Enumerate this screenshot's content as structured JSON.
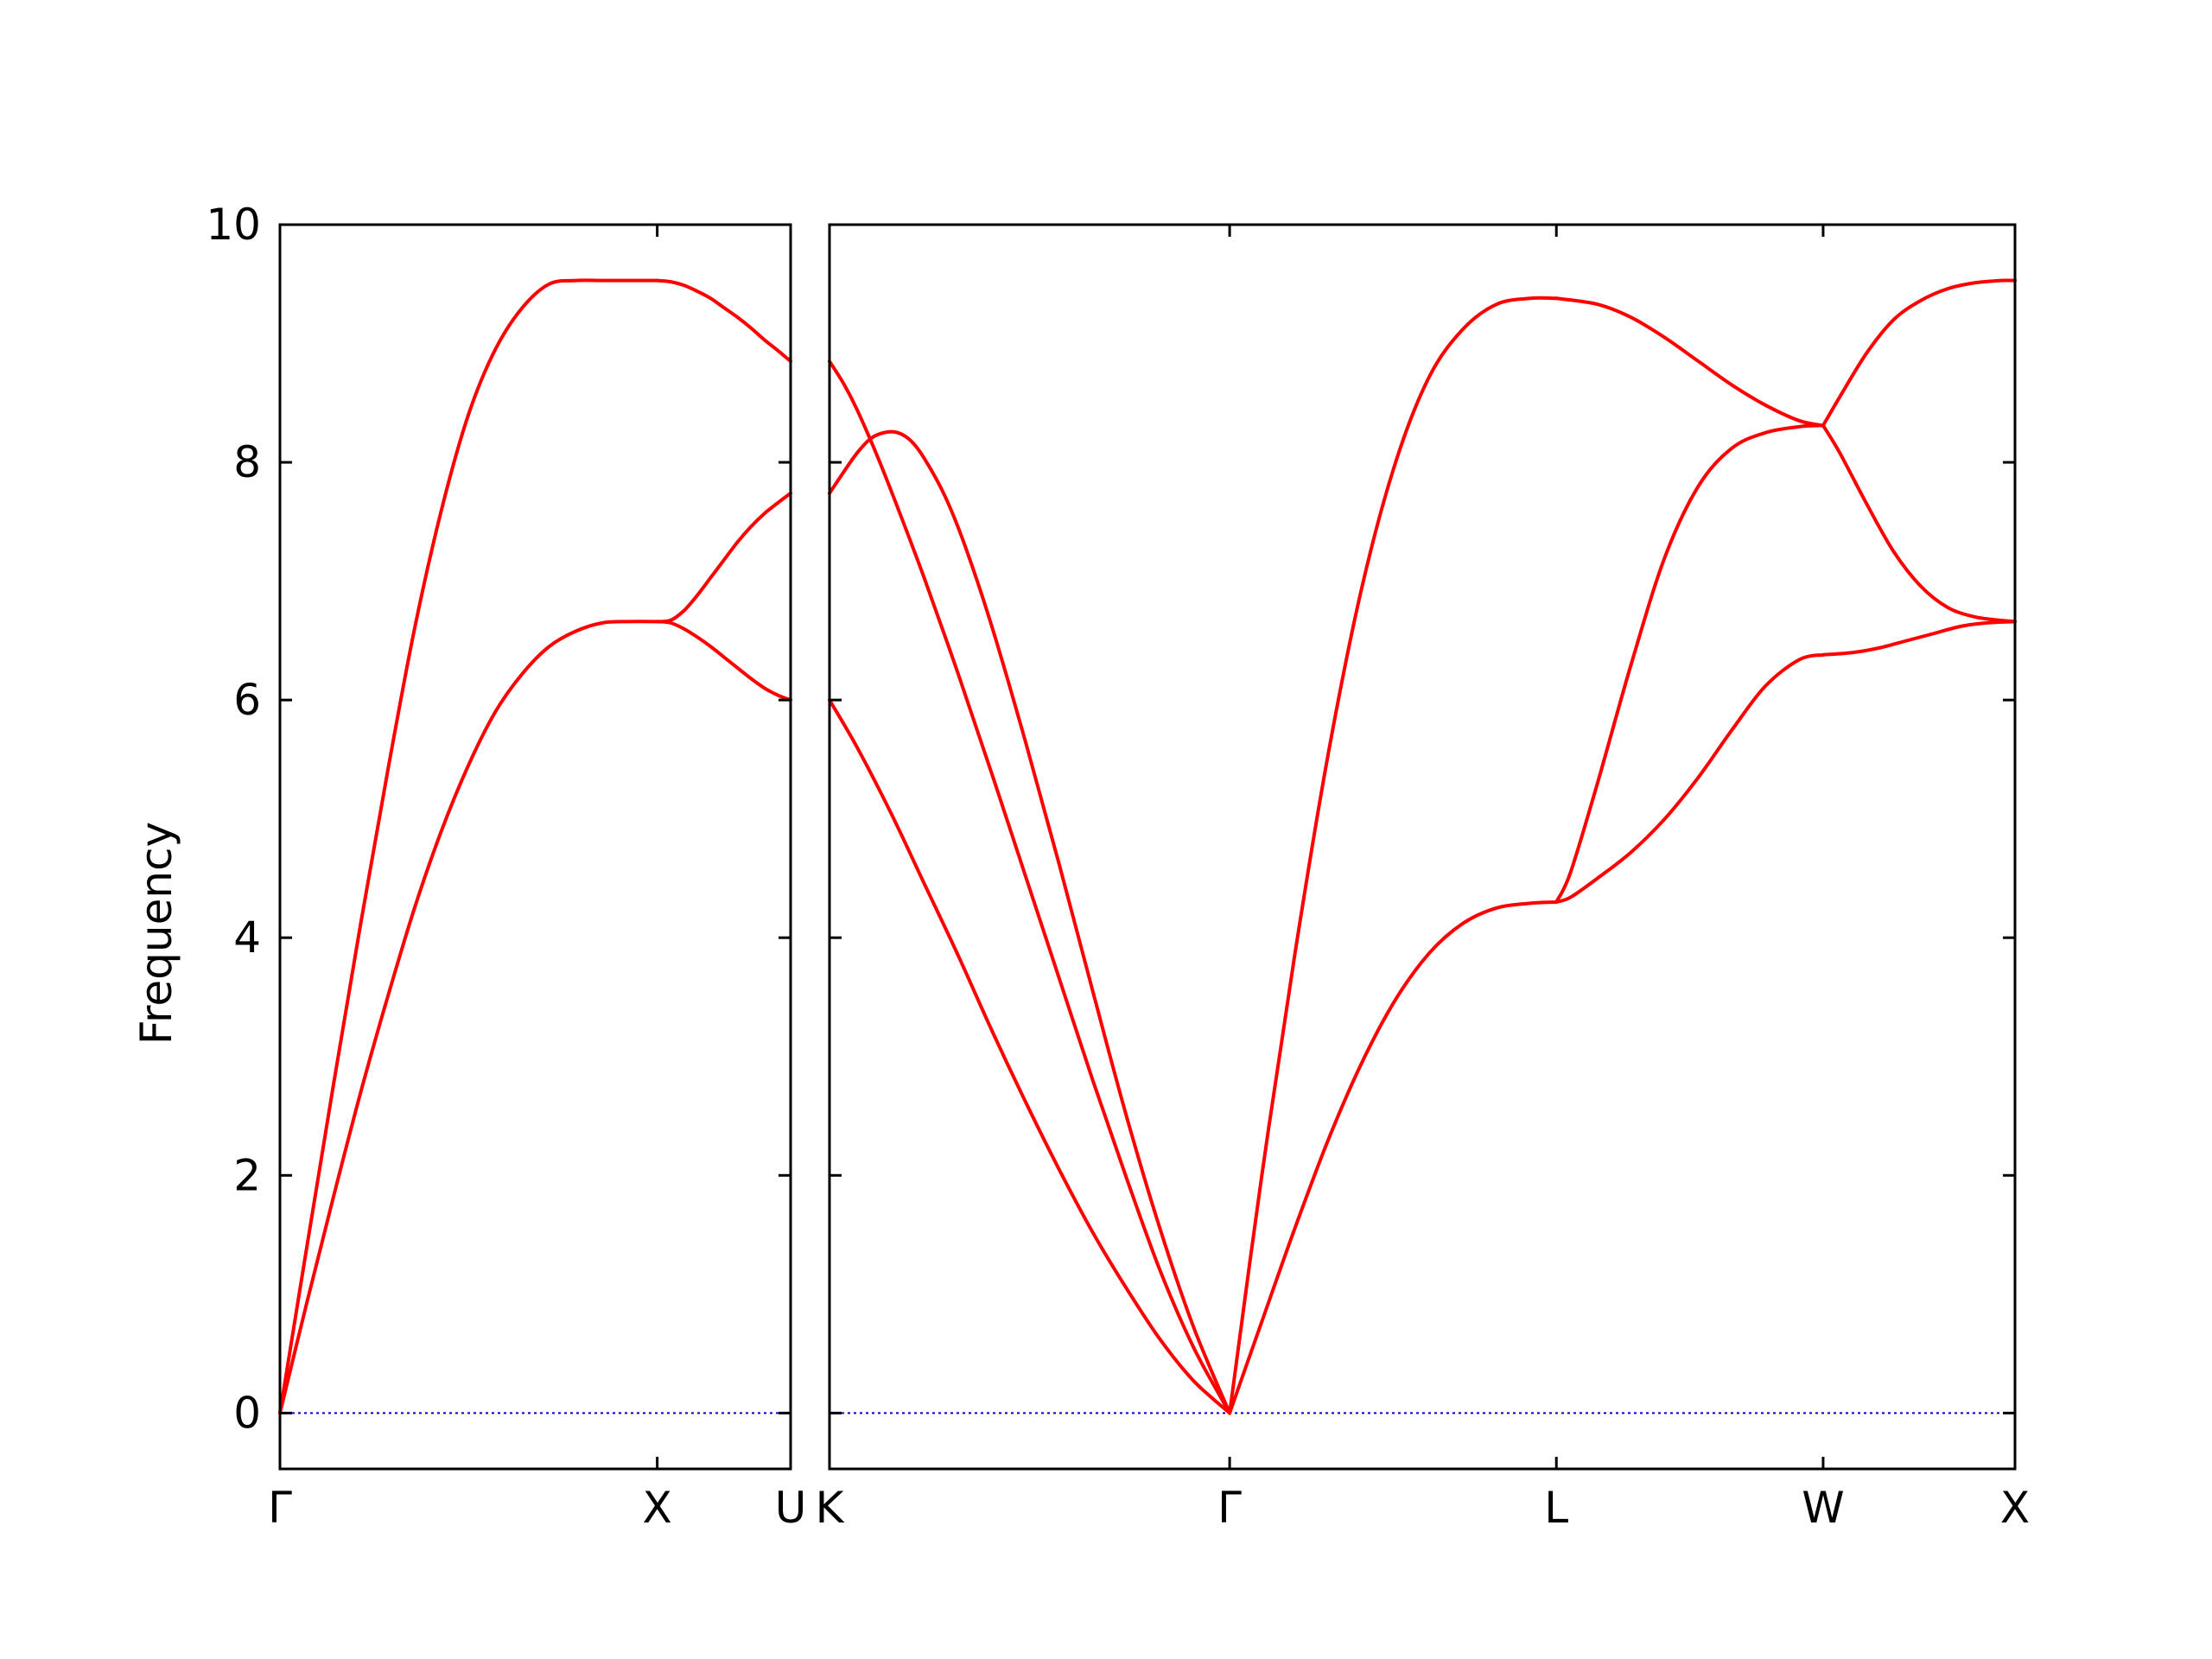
{
  "chart_data": {
    "type": "line",
    "ylabel": "Frequency",
    "ylim": [
      -0.47,
      10
    ],
    "yticks": [
      0,
      2,
      4,
      6,
      8,
      10
    ],
    "grid": false,
    "line_color": "#ff0000",
    "zero_line_color": "#0000cc",
    "panels": [
      {
        "name": "Γ-X-U",
        "xlim": [
          0,
          0.7588
        ],
        "xticks": [
          {
            "position": 0.0,
            "label": "Γ"
          },
          {
            "position": 0.5606,
            "label": "X"
          },
          {
            "position": 0.7588,
            "label": "U"
          }
        ],
        "series": [
          {
            "x": [
              0,
              0.04,
              0.08,
              0.12,
              0.16,
              0.2,
              0.24,
              0.28,
              0.32,
              0.36,
              0.4,
              0.44,
              0.48,
              0.52,
              0.5606
            ],
            "y": [
              0,
              0.93,
              1.83,
              2.7,
              3.5,
              4.25,
              4.9,
              5.45,
              5.9,
              6.22,
              6.45,
              6.58,
              6.65,
              6.66,
              6.66
            ]
          },
          {
            "x": [
              0,
              0.04,
              0.08,
              0.12,
              0.16,
              0.2,
              0.24,
              0.28,
              0.32,
              0.36,
              0.4,
              0.44,
              0.48,
              0.52,
              0.5606
            ],
            "y": [
              0,
              1.4,
              2.78,
              4.12,
              5.4,
              6.6,
              7.6,
              8.4,
              8.95,
              9.3,
              9.5,
              9.53,
              9.53,
              9.53,
              9.53
            ]
          },
          {
            "x": [
              0.5606,
              0.58,
              0.6,
              0.62,
              0.64,
              0.66,
              0.68,
              0.7,
              0.72,
              0.74,
              0.7588
            ],
            "y": [
              6.66,
              6.67,
              6.75,
              6.88,
              7.03,
              7.18,
              7.33,
              7.46,
              7.57,
              7.66,
              7.74
            ]
          },
          {
            "x": [
              0.5606,
              0.58,
              0.6,
              0.62,
              0.64,
              0.66,
              0.68,
              0.7,
              0.72,
              0.74,
              0.7588
            ],
            "y": [
              6.66,
              6.65,
              6.6,
              6.53,
              6.45,
              6.36,
              6.27,
              6.18,
              6.1,
              6.04,
              6.0
            ]
          },
          {
            "x": [
              0.5606,
              0.58,
              0.6,
              0.62,
              0.64,
              0.66,
              0.68,
              0.7,
              0.72,
              0.74,
              0.7588
            ],
            "y": [
              9.53,
              9.52,
              9.49,
              9.44,
              9.38,
              9.3,
              9.22,
              9.13,
              9.03,
              8.94,
              8.85
            ]
          }
        ]
      },
      {
        "name": "K-Γ-L-W-X",
        "xlim": [
          0.7588,
          2.5204
        ],
        "xticks": [
          {
            "position": 0.7588,
            "label": "K"
          },
          {
            "position": 1.3534,
            "label": "Γ"
          },
          {
            "position": 1.8389,
            "label": "L"
          },
          {
            "position": 2.2353,
            "label": "W"
          },
          {
            "position": 2.5204,
            "label": "X"
          }
        ],
        "series": [
          {
            "x": [
              0.7588,
              0.8,
              0.85,
              0.9,
              0.95,
              1.0,
              1.05,
              1.1,
              1.15,
              1.2,
              1.25,
              1.3,
              1.3534
            ],
            "y": [
              6.0,
              5.6,
              5.05,
              4.45,
              3.85,
              3.22,
              2.62,
              2.05,
              1.52,
              1.05,
              0.62,
              0.27,
              0
            ]
          },
          {
            "x": [
              0.7588,
              0.78,
              0.8,
              0.83,
              0.86,
              0.9,
              0.95,
              1.0,
              1.05,
              1.1,
              1.15,
              1.2,
              1.25,
              1.3,
              1.3534
            ],
            "y": [
              8.85,
              8.66,
              8.44,
              8.05,
              7.62,
              7.02,
              6.22,
              5.38,
              4.52,
              3.66,
              2.8,
              1.98,
              1.2,
              0.55,
              0
            ]
          },
          {
            "x": [
              0.7588,
              0.78,
              0.8,
              0.82,
              0.84,
              0.86,
              0.88,
              0.9,
              0.93,
              0.96,
              1.0,
              1.05,
              1.1,
              1.15,
              1.2,
              1.25,
              1.3,
              1.3534
            ],
            "y": [
              7.74,
              7.92,
              8.08,
              8.2,
              8.25,
              8.25,
              8.18,
              8.03,
              7.72,
              7.3,
              6.62,
              5.65,
              4.62,
              3.55,
              2.5,
              1.55,
              0.72,
              0
            ]
          },
          {
            "x": [
              1.3534,
              1.4,
              1.45,
              1.5,
              1.55,
              1.6,
              1.65,
              1.7,
              1.75,
              1.8,
              1.8389
            ],
            "y": [
              0,
              0.75,
              1.55,
              2.3,
              2.95,
              3.48,
              3.87,
              4.12,
              4.25,
              4.29,
              4.3
            ]
          },
          {
            "x": [
              1.3534,
              1.4,
              1.45,
              1.5,
              1.55,
              1.6,
              1.65,
              1.7,
              1.75,
              1.8,
              1.8389
            ],
            "y": [
              0,
              1.95,
              3.85,
              5.55,
              6.95,
              8.0,
              8.72,
              9.12,
              9.33,
              9.38,
              9.38
            ]
          },
          {
            "x": [
              1.8389,
              1.86,
              1.9,
              1.95,
              2.0,
              2.05,
              2.1,
              2.15,
              2.2,
              2.2353
            ],
            "y": [
              4.3,
              4.34,
              4.5,
              4.72,
              5.0,
              5.35,
              5.75,
              6.12,
              6.34,
              6.38
            ]
          },
          {
            "x": [
              1.8389,
              1.86,
              1.9,
              1.95,
              2.0,
              2.05,
              2.1,
              2.15,
              2.2,
              2.2353
            ],
            "y": [
              4.3,
              4.55,
              5.3,
              6.3,
              7.2,
              7.8,
              8.12,
              8.25,
              8.3,
              8.31
            ]
          },
          {
            "x": [
              1.8389,
              1.9,
              1.95,
              2.0,
              2.05,
              2.1,
              2.15,
              2.2,
              2.2353
            ],
            "y": [
              9.38,
              9.33,
              9.22,
              9.05,
              8.85,
              8.65,
              8.48,
              8.35,
              8.31
            ]
          },
          {
            "x": [
              2.2353,
              2.28,
              2.32,
              2.36,
              2.4,
              2.44,
              2.48,
              2.5204
            ],
            "y": [
              6.38,
              6.4,
              6.44,
              6.5,
              6.56,
              6.62,
              6.65,
              6.66
            ]
          },
          {
            "x": [
              2.2353,
              2.26,
              2.3,
              2.34,
              2.38,
              2.42,
              2.46,
              2.5,
              2.5204
            ],
            "y": [
              8.31,
              8.08,
              7.65,
              7.25,
              6.96,
              6.78,
              6.7,
              6.67,
              6.66
            ]
          },
          {
            "x": [
              2.2353,
              2.26,
              2.3,
              2.34,
              2.38,
              2.42,
              2.46,
              2.5,
              2.5204
            ],
            "y": [
              8.31,
              8.55,
              8.92,
              9.2,
              9.36,
              9.46,
              9.51,
              9.53,
              9.53
            ]
          }
        ]
      }
    ]
  }
}
